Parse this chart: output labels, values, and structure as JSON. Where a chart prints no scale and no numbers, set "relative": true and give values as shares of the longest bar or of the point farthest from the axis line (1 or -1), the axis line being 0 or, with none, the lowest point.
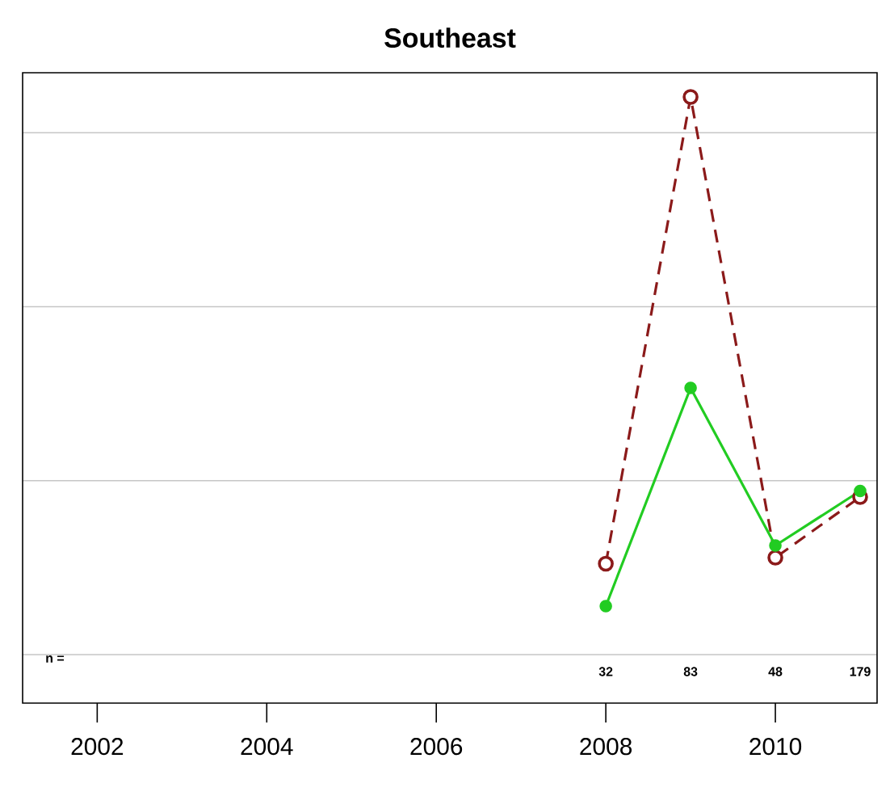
{
  "chart_data": {
    "type": "line",
    "title": "Southeast",
    "relative": true,
    "x": [
      2008,
      2009,
      2010,
      2011
    ],
    "xlim": [
      2001.12,
      2011.2
    ],
    "xticks": [
      2002,
      2004,
      2006,
      2008,
      2010
    ],
    "series": [
      {
        "color": "#8b1a1a",
        "line_style": "dashed",
        "values": [
          0.23,
          1,
          0.24,
          0.34
        ]
      },
      {
        "color": "#22cc22",
        "line_style": "solid",
        "values": [
          0.16,
          0.52,
          0.26,
          0.35
        ]
      }
    ],
    "marker": "circle",
    "grid": "y",
    "tick_labels": "x",
    "annotations": [
      "n =",
      "32",
      "83",
      "48",
      "179"
    ]
  }
}
